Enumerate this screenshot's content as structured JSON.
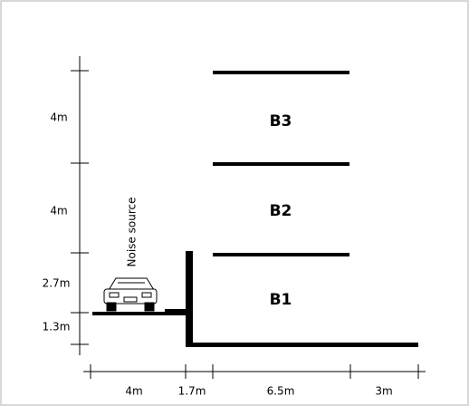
{
  "levels": [
    "B3",
    "B2",
    "B1"
  ],
  "source_label": "Noise source",
  "vertical_dimensions": [
    "4m",
    "4m",
    "2.7m",
    "1.3m"
  ],
  "horizontal_dimensions": [
    "4m",
    "1.7m",
    "6.5m",
    "3m"
  ]
}
